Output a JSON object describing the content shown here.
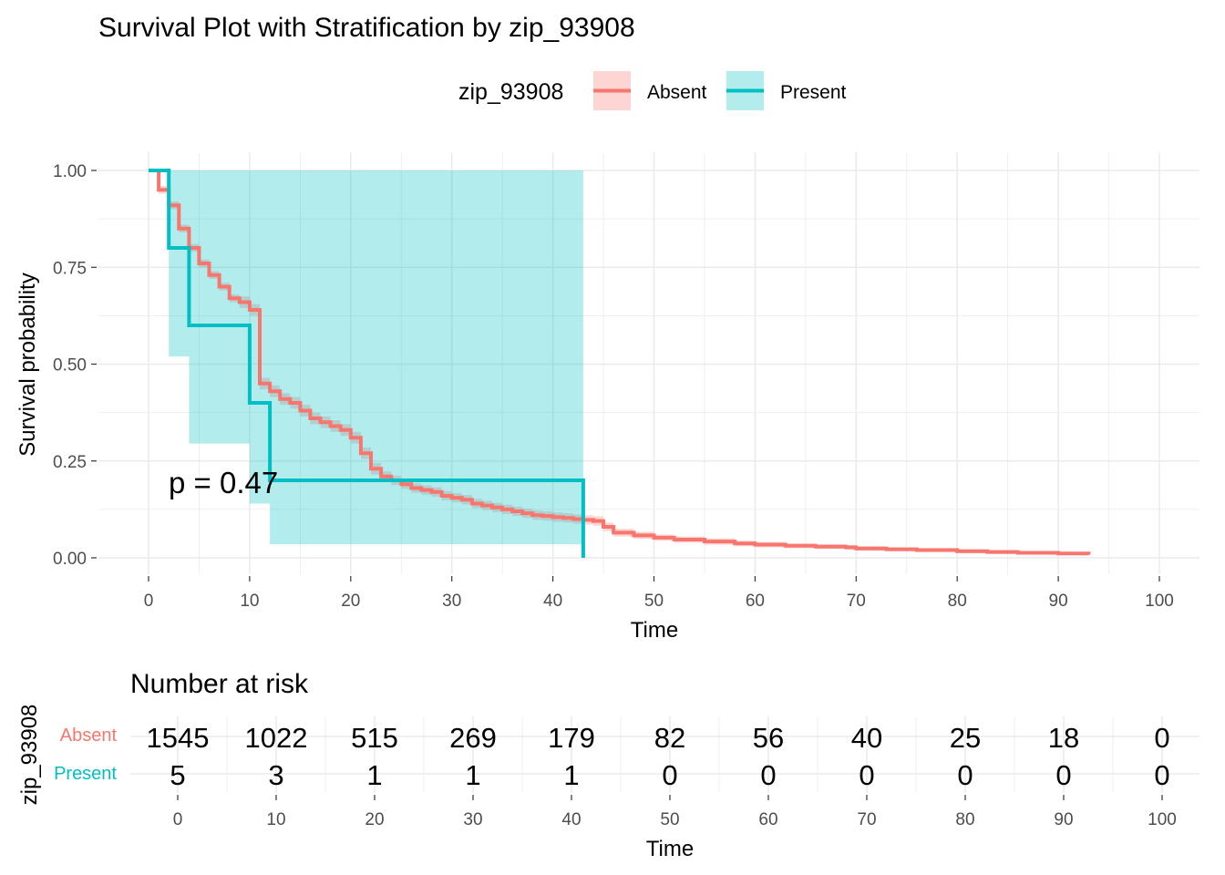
{
  "chart_data": [
    {
      "type": "line",
      "subtype": "kaplan-meier",
      "title": "Survival Plot with Stratification by zip_93908",
      "xlabel": "Time",
      "ylabel": "Survival probability",
      "xlim": [
        0,
        100
      ],
      "ylim": [
        0,
        1
      ],
      "x_ticks": [
        "0",
        "10",
        "20",
        "30",
        "40",
        "50",
        "60",
        "70",
        "80",
        "90",
        "100"
      ],
      "y_ticks": [
        "0.00",
        "0.25",
        "0.50",
        "0.75",
        "1.00"
      ],
      "legend": {
        "title": "zip_93908",
        "position": "top",
        "entries": [
          "Absent",
          "Present"
        ]
      },
      "grid": true,
      "annotation": "p = 0.47",
      "series": [
        {
          "name": "Absent",
          "color": "#F8766D",
          "x": [
            0,
            1,
            2,
            3,
            4,
            5,
            6,
            7,
            8,
            9,
            10,
            11,
            12,
            13,
            14,
            15,
            16,
            17,
            18,
            19,
            20,
            21,
            22,
            23,
            24,
            25,
            26,
            27,
            28,
            29,
            30,
            31,
            32,
            33,
            34,
            35,
            36,
            37,
            38,
            39,
            40,
            41,
            42,
            43,
            44,
            45,
            46,
            48,
            50,
            52,
            55,
            58,
            60,
            63,
            66,
            69,
            70,
            73,
            76,
            80,
            83,
            86,
            90,
            93
          ],
          "y": [
            1.0,
            0.95,
            0.91,
            0.85,
            0.8,
            0.76,
            0.73,
            0.7,
            0.67,
            0.66,
            0.64,
            0.45,
            0.43,
            0.41,
            0.4,
            0.38,
            0.36,
            0.35,
            0.34,
            0.33,
            0.31,
            0.27,
            0.23,
            0.21,
            0.2,
            0.19,
            0.18,
            0.175,
            0.17,
            0.16,
            0.155,
            0.15,
            0.14,
            0.135,
            0.13,
            0.125,
            0.12,
            0.115,
            0.11,
            0.108,
            0.105,
            0.103,
            0.1,
            0.098,
            0.095,
            0.08,
            0.065,
            0.058,
            0.052,
            0.047,
            0.042,
            0.037,
            0.034,
            0.031,
            0.029,
            0.027,
            0.024,
            0.022,
            0.02,
            0.017,
            0.015,
            0.013,
            0.011,
            0.008
          ],
          "ci_lower": [
            1.0,
            0.94,
            0.9,
            0.84,
            0.79,
            0.75,
            0.72,
            0.69,
            0.66,
            0.645,
            0.625,
            0.435,
            0.415,
            0.395,
            0.385,
            0.365,
            0.345,
            0.335,
            0.325,
            0.315,
            0.295,
            0.255,
            0.215,
            0.197,
            0.188,
            0.178,
            0.168,
            0.163,
            0.158,
            0.148,
            0.143,
            0.138,
            0.128,
            0.123,
            0.118,
            0.113,
            0.108,
            0.103,
            0.098,
            0.096,
            0.093,
            0.091,
            0.088,
            0.086,
            0.083,
            0.069,
            0.055,
            0.049,
            0.044,
            0.039,
            0.034,
            0.03,
            0.027,
            0.025,
            0.023,
            0.021,
            0.018,
            0.017,
            0.015,
            0.012,
            0.01,
            0.009,
            0.007,
            0.004
          ],
          "ci_upper": [
            1.0,
            0.96,
            0.92,
            0.86,
            0.81,
            0.77,
            0.74,
            0.71,
            0.68,
            0.675,
            0.655,
            0.465,
            0.445,
            0.425,
            0.415,
            0.395,
            0.375,
            0.365,
            0.355,
            0.345,
            0.325,
            0.285,
            0.245,
            0.223,
            0.212,
            0.202,
            0.192,
            0.187,
            0.182,
            0.172,
            0.167,
            0.162,
            0.152,
            0.147,
            0.142,
            0.137,
            0.132,
            0.127,
            0.122,
            0.12,
            0.117,
            0.115,
            0.112,
            0.11,
            0.107,
            0.091,
            0.075,
            0.067,
            0.06,
            0.055,
            0.05,
            0.044,
            0.041,
            0.037,
            0.035,
            0.033,
            0.03,
            0.027,
            0.025,
            0.022,
            0.02,
            0.017,
            0.015,
            0.012
          ]
        },
        {
          "name": "Present",
          "color": "#00BFC4",
          "x": [
            0,
            2,
            4,
            10,
            12,
            43
          ],
          "y": [
            1.0,
            0.8,
            0.6,
            0.4,
            0.2,
            0.0
          ],
          "ci_lower": [
            1.0,
            0.52,
            0.295,
            0.14,
            0.035,
            0.035
          ],
          "ci_upper": [
            1.0,
            1.0,
            1.0,
            1.0,
            1.0,
            1.0
          ],
          "ci_end": 43
        }
      ]
    },
    {
      "type": "table",
      "title": "Number at risk",
      "xlabel": "Time",
      "ylabel": "zip_93908",
      "x_ticks": [
        "0",
        "10",
        "20",
        "30",
        "40",
        "50",
        "60",
        "70",
        "80",
        "90",
        "100"
      ],
      "rows": [
        {
          "name": "Absent",
          "color": "#F8766D",
          "values": [
            "1545",
            "1022",
            "515",
            "269",
            "179",
            "82",
            "56",
            "40",
            "25",
            "18",
            "0"
          ]
        },
        {
          "name": "Present",
          "color": "#00BFC4",
          "values": [
            "5",
            "3",
            "1",
            "1",
            "1",
            "0",
            "0",
            "0",
            "0",
            "0",
            "0"
          ]
        }
      ]
    }
  ]
}
